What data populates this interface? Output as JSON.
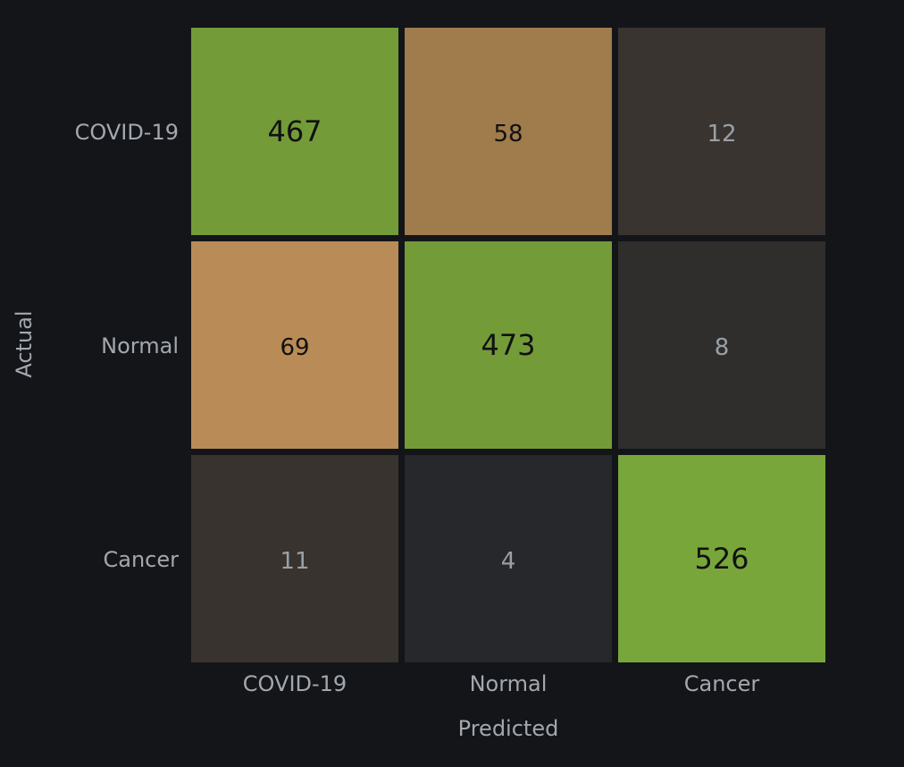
{
  "chart_data": {
    "type": "heatmap",
    "title": "",
    "xlabel": "Predicted",
    "ylabel": "Actual",
    "x_categories": [
      "COVID-19",
      "Normal",
      "Cancer"
    ],
    "y_categories": [
      "COVID-19",
      "Normal",
      "Cancer"
    ],
    "values": [
      [
        467,
        58,
        12
      ],
      [
        69,
        473,
        8
      ],
      [
        11,
        4,
        526
      ]
    ],
    "cell_colors": [
      [
        "#739b38",
        "#a07b4b",
        "#393430"
      ],
      [
        "#b98b56",
        "#739b38",
        "#2f2e2d"
      ],
      [
        "#38332f",
        "#27282c",
        "#79a63a"
      ]
    ],
    "cell_text_colors": [
      [
        "#111111",
        "#111111",
        "#9aa0a6"
      ],
      [
        "#111111",
        "#111111",
        "#9aa0a6"
      ],
      [
        "#9aa0a6",
        "#9aa0a6",
        "#111111"
      ]
    ],
    "grid": false,
    "legend": "none"
  }
}
